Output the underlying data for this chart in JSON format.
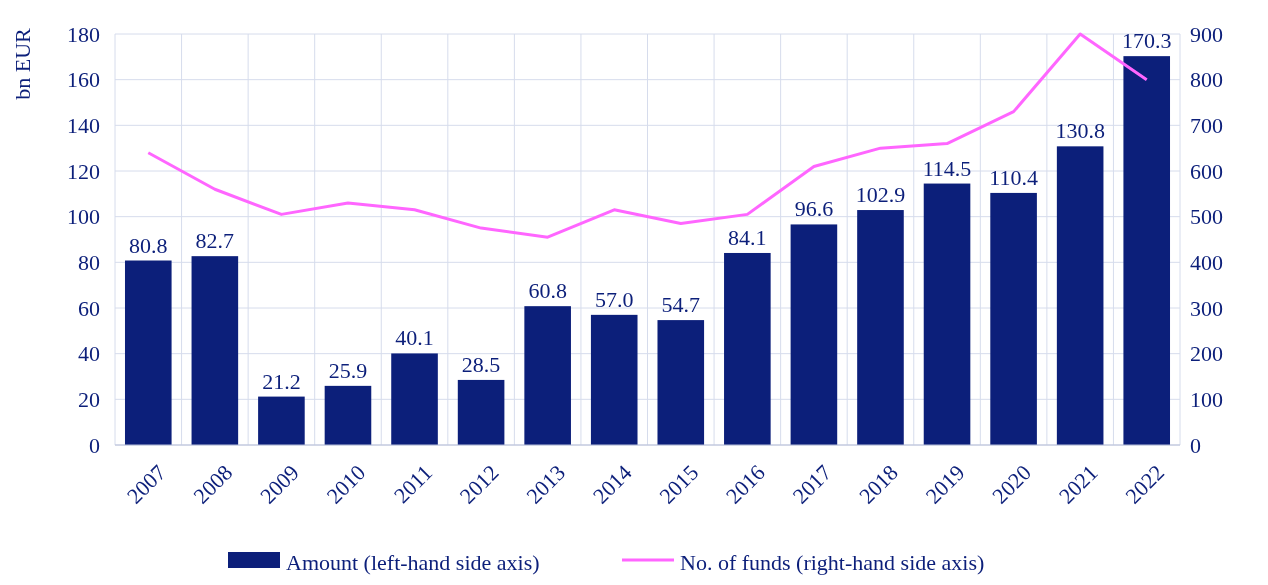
{
  "chart_data": {
    "type": "bar",
    "ylabel": "bn EUR",
    "categories": [
      "2007",
      "2008",
      "2009",
      "2010",
      "2011",
      "2012",
      "2013",
      "2014",
      "2015",
      "2016",
      "2017",
      "2018",
      "2019",
      "2020",
      "2021",
      "2022"
    ],
    "series": [
      {
        "name": "Amount (left-hand side axis)",
        "color": "#0c1f7a",
        "values": [
          80.8,
          82.7,
          21.2,
          25.9,
          40.1,
          28.5,
          60.8,
          57.0,
          54.7,
          84.1,
          96.6,
          102.9,
          114.5,
          110.4,
          130.8,
          170.3
        ],
        "value_labels": [
          "80.8",
          "82.7",
          "21.2",
          "25.9",
          "40.1",
          "28.5",
          "60.8",
          "57.0",
          "54.7",
          "84.1",
          "96.6",
          "102.9",
          "114.5",
          "110.4",
          "130.8",
          "170.3"
        ]
      },
      {
        "name": "No. of funds (right-hand side axis)",
        "type": "line",
        "axis": "y2",
        "color": "#ff66ff",
        "values": [
          640,
          560,
          505,
          530,
          515,
          475,
          455,
          515,
          485,
          505,
          610,
          650,
          660,
          730,
          900,
          800
        ]
      }
    ],
    "ylim": [
      0,
      180
    ],
    "yticks": [
      0,
      20,
      40,
      60,
      80,
      100,
      120,
      140,
      160,
      180
    ],
    "y2lim": [
      0,
      900
    ],
    "y2ticks": [
      0,
      100,
      200,
      300,
      400,
      500,
      600,
      700,
      800,
      900
    ],
    "grid": true,
    "legend": "bottom",
    "marker": "none",
    "line_style": "solid"
  }
}
